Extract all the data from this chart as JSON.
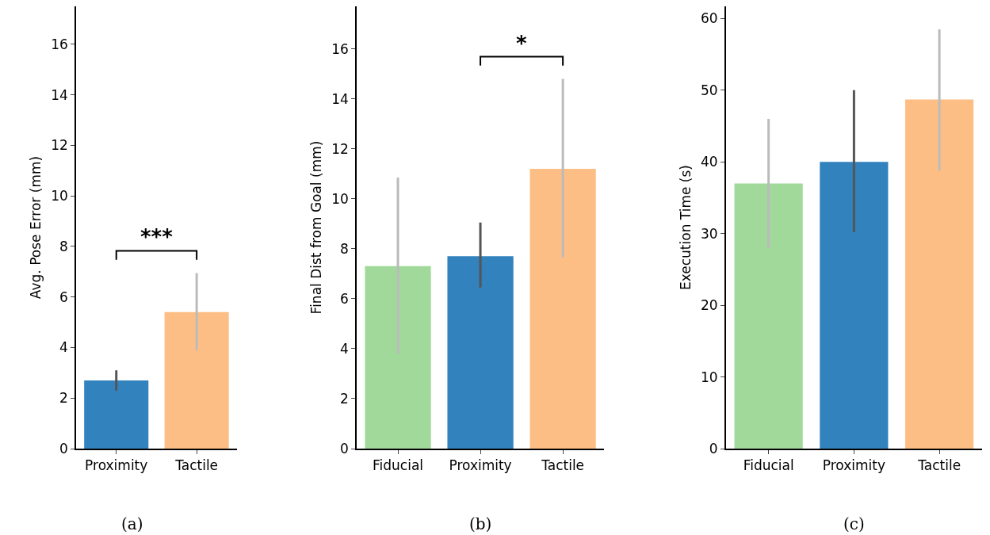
{
  "chart_data": [
    {
      "type": "bar",
      "ylabel": "Avg. Pose Error (mm)",
      "categories": [
        "Proximity",
        "Tactile"
      ],
      "values": [
        2.7,
        5.4
      ],
      "colors": [
        "#3182bd",
        "#fdbe85"
      ],
      "errors": [
        [
          2.3,
          3.1
        ],
        [
          3.9,
          6.95
        ]
      ],
      "ylim": [
        0,
        17.5
      ],
      "yticks": [
        0,
        2,
        4,
        6,
        8,
        10,
        12,
        14,
        16
      ],
      "annotations": [
        "***",
        "(a)"
      ]
    },
    {
      "type": "bar",
      "ylabel": "Final Dist from Goal (mm)",
      "categories": [
        "Fiducial",
        "Proximity",
        "Tactile"
      ],
      "values": [
        7.3,
        7.7,
        11.2
      ],
      "colors": [
        "#a1d99b",
        "#3182bd",
        "#fdbe85"
      ],
      "errors": [
        [
          3.8,
          10.85
        ],
        [
          6.45,
          9.05
        ],
        [
          7.65,
          14.8
        ]
      ],
      "ylim": [
        0,
        17.7
      ],
      "yticks": [
        0,
        2,
        4,
        6,
        8,
        10,
        12,
        14,
        16
      ],
      "annotations": [
        "*",
        "(b)"
      ]
    },
    {
      "type": "bar",
      "ylabel": "Execution Time (s)",
      "categories": [
        "Fiducial",
        "Proximity",
        "Tactile"
      ],
      "values": [
        37,
        40,
        48.7
      ],
      "colors": [
        "#a1d99b",
        "#3182bd",
        "#fdbe85"
      ],
      "errors": [
        [
          28,
          46
        ],
        [
          30.2,
          50
        ],
        [
          38.8,
          58.5
        ]
      ],
      "ylim": [
        0,
        61.7
      ],
      "yticks": [
        0,
        10,
        20,
        30,
        40,
        50,
        60
      ],
      "annotations": [
        "(c)"
      ]
    }
  ]
}
